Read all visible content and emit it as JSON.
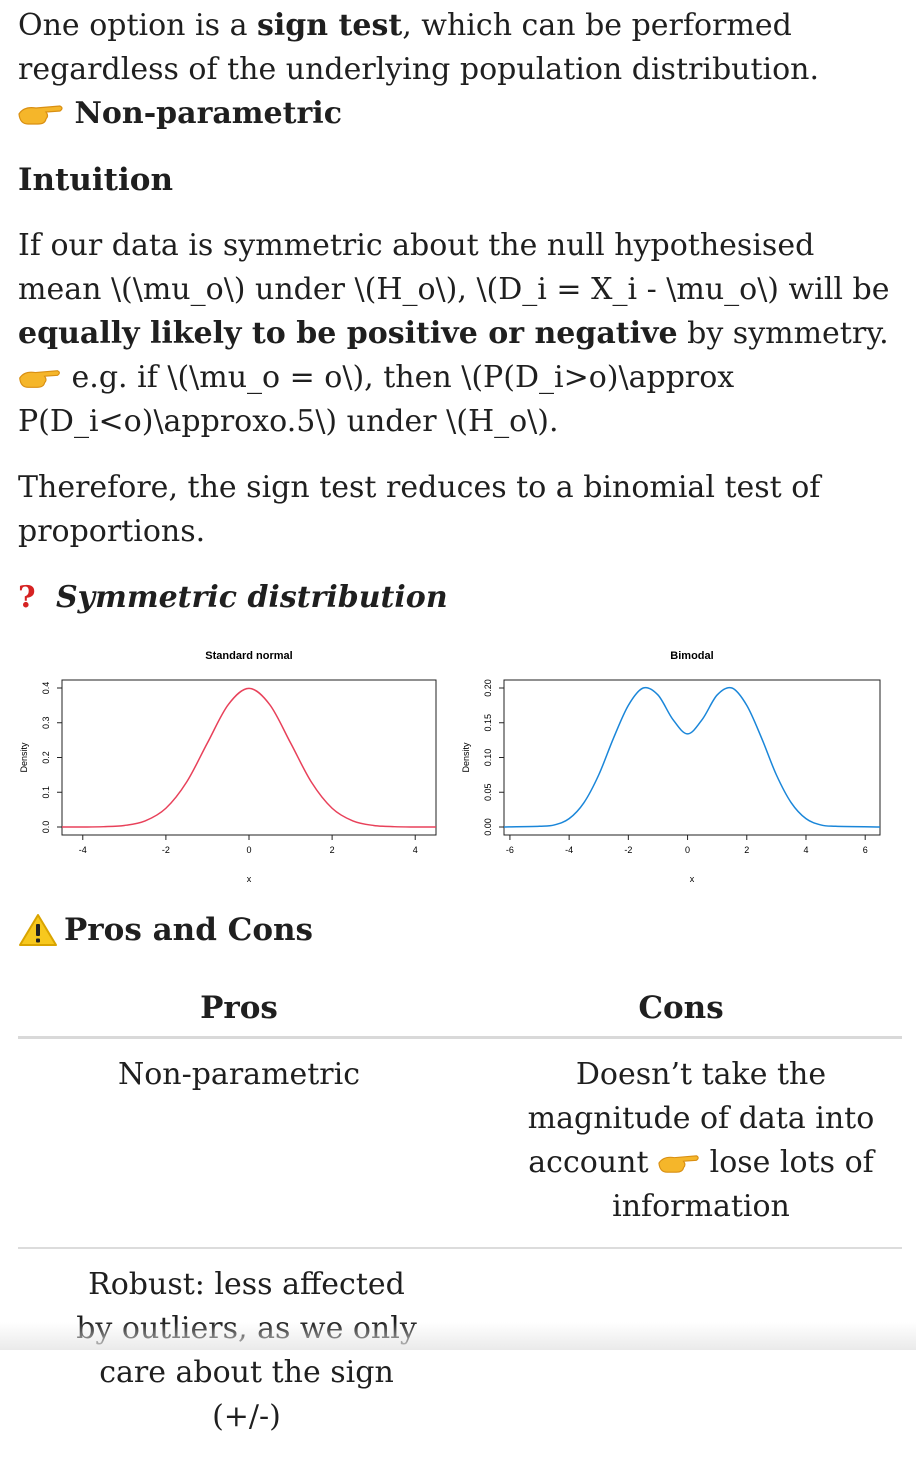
{
  "intro": {
    "pre": "One option is a ",
    "bold": "sign test",
    "post": ", which can be performed regardless of the underlying population distribution.",
    "hint": "Non-parametric"
  },
  "intuition": {
    "heading": "Intuition",
    "line_a": "If our data is symmetric about the null hypothesised mean \\(\\mu_o\\) under \\(H_o\\), \\(D_i = X_i - \\mu_o\\) will be ",
    "bold": "equally likely to be positive or negative",
    "line_b": " by symmetry.",
    "example": "e.g. if \\(\\mu_o = o\\), then \\(P(D_i>o)\\approx P(D_i<o)\\approxo.5\\) under \\(H_o\\).",
    "conclusion": "Therefore, the sign test reduces to a binomial test of proportions."
  },
  "symmetric": {
    "heading": "Symmetric distribution",
    "marker": "?"
  },
  "chart_data": [
    {
      "type": "line",
      "title": "Standard normal",
      "xlabel": "x",
      "ylabel": "Density",
      "xlim": [
        -4.5,
        4.5
      ],
      "ylim": [
        0,
        0.4
      ],
      "xticks": [
        "-4",
        "-2",
        "0",
        "2",
        "4"
      ],
      "yticks": [
        "0.0",
        "0.1",
        "0.2",
        "0.3",
        "0.4"
      ],
      "color": "#e8415a",
      "series": [
        {
          "x": [
            -4.5,
            -4,
            -3.5,
            -3,
            -2.5,
            -2,
            -1.5,
            -1,
            -0.5,
            0,
            0.5,
            1,
            1.5,
            2,
            2.5,
            3,
            3.5,
            4,
            4.5
          ],
          "y": [
            0,
            0.0001,
            0.0009,
            0.0044,
            0.0175,
            0.054,
            0.1295,
            0.242,
            0.352,
            0.399,
            0.352,
            0.242,
            0.1295,
            0.054,
            0.0175,
            0.0044,
            0.0009,
            0.0001,
            0
          ]
        }
      ]
    },
    {
      "type": "line",
      "title": "Bimodal",
      "xlabel": "x",
      "ylabel": "Density",
      "xlim": [
        -6.2,
        6.5
      ],
      "ylim": [
        0,
        0.2
      ],
      "xticks": [
        "-6",
        "-4",
        "-2",
        "0",
        "2",
        "4",
        "6"
      ],
      "yticks": [
        "0.00",
        "0.05",
        "0.10",
        "0.15",
        "0.20"
      ],
      "color": "#1a86d9",
      "series": [
        {
          "x": [
            -6.2,
            -5,
            -4.5,
            -4,
            -3.5,
            -3,
            -2.5,
            -2,
            -1.5,
            -1,
            -0.5,
            0,
            0.5,
            1,
            1.5,
            2,
            2.5,
            3,
            3.5,
            4,
            4.5,
            5,
            6.5
          ],
          "y": [
            0,
            0.001,
            0.003,
            0.012,
            0.035,
            0.075,
            0.128,
            0.175,
            0.2,
            0.19,
            0.155,
            0.134,
            0.155,
            0.19,
            0.2,
            0.175,
            0.128,
            0.075,
            0.035,
            0.012,
            0.003,
            0.001,
            0
          ]
        }
      ]
    }
  ],
  "pros_cons": {
    "heading": "Pros and Cons",
    "col_pros": "Pros",
    "col_cons": "Cons",
    "row1_pro": "Non-parametric",
    "row1_con_a": "Doesn’t take the magnitude of data into account",
    "row1_con_b": "lose lots of information",
    "row2_pro": "Robust: less affected by outliers, as we only care about the sign (+/-)",
    "row2_con": ""
  },
  "icons": {
    "pointing": "backhand-index-pointing-right-icon",
    "question": "red-question-mark-icon",
    "warning": "warning-icon"
  }
}
